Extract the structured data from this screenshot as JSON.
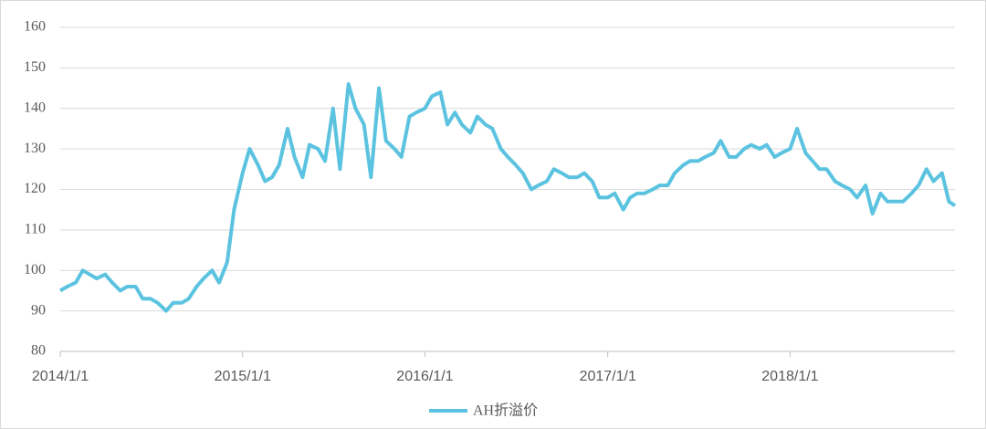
{
  "chart_data": {
    "type": "line",
    "x": [
      "2014/1/1",
      "2014/1/15",
      "2014/2/1",
      "2014/2/15",
      "2014/3/1",
      "2014/3/15",
      "2014/4/1",
      "2014/4/15",
      "2014/5/1",
      "2014/5/15",
      "2014/6/1",
      "2014/6/15",
      "2014/7/1",
      "2014/7/15",
      "2014/8/1",
      "2014/8/15",
      "2014/9/1",
      "2014/9/15",
      "2014/10/1",
      "2014/10/15",
      "2014/11/1",
      "2014/11/15",
      "2014/12/1",
      "2014/12/15",
      "2015/1/1",
      "2015/1/15",
      "2015/2/1",
      "2015/2/15",
      "2015/3/1",
      "2015/3/15",
      "2015/4/1",
      "2015/4/15",
      "2015/5/1",
      "2015/5/15",
      "2015/6/1",
      "2015/6/15",
      "2015/7/1",
      "2015/7/15",
      "2015/8/1",
      "2015/8/15",
      "2015/9/1",
      "2015/9/15",
      "2015/10/1",
      "2015/10/15",
      "2015/11/1",
      "2015/11/15",
      "2015/12/1",
      "2015/12/15",
      "2016/1/1",
      "2016/1/15",
      "2016/2/1",
      "2016/2/15",
      "2016/3/1",
      "2016/3/15",
      "2016/4/1",
      "2016/4/15",
      "2016/5/1",
      "2016/5/15",
      "2016/6/1",
      "2016/6/15",
      "2016/7/1",
      "2016/7/15",
      "2016/8/1",
      "2016/8/15",
      "2016/9/1",
      "2016/9/15",
      "2016/10/1",
      "2016/10/15",
      "2016/11/1",
      "2016/11/15",
      "2016/12/1",
      "2016/12/15",
      "2017/1/1",
      "2017/1/15",
      "2017/2/1",
      "2017/2/15",
      "2017/3/1",
      "2017/3/15",
      "2017/4/1",
      "2017/4/15",
      "2017/5/1",
      "2017/5/15",
      "2017/6/1",
      "2017/6/15",
      "2017/7/1",
      "2017/7/15",
      "2017/8/1",
      "2017/8/15",
      "2017/9/1",
      "2017/9/15",
      "2017/10/1",
      "2017/10/15",
      "2017/11/1",
      "2017/11/15",
      "2017/12/1",
      "2017/12/15",
      "2018/1/1",
      "2018/1/15",
      "2018/2/1",
      "2018/2/15",
      "2018/3/1",
      "2018/3/15",
      "2018/4/1",
      "2018/4/15",
      "2018/5/1",
      "2018/5/15",
      "2018/6/1",
      "2018/6/15",
      "2018/7/1",
      "2018/7/15",
      "2018/8/1",
      "2018/8/15",
      "2018/9/1",
      "2018/9/15",
      "2018/10/1",
      "2018/10/15",
      "2018/11/1",
      "2018/11/15",
      "2018/11/27"
    ],
    "series": [
      {
        "name": "AH折溢价",
        "color": "#5bc3e0",
        "values": [
          95,
          96,
          97,
          100,
          99,
          98,
          99,
          97,
          95,
          96,
          96,
          93,
          93,
          92,
          90,
          92,
          92,
          93,
          96,
          98,
          100,
          97,
          102,
          115,
          124,
          130,
          126,
          122,
          123,
          126,
          135,
          128,
          123,
          131,
          130,
          127,
          140,
          125,
          146,
          140,
          136,
          123,
          145,
          132,
          130,
          128,
          138,
          139,
          140,
          143,
          144,
          136,
          139,
          136,
          134,
          138,
          136,
          135,
          130,
          128,
          126,
          124,
          120,
          121,
          122,
          125,
          124,
          123,
          123,
          124,
          122,
          118,
          118,
          119,
          115,
          118,
          119,
          119,
          120,
          121,
          121,
          124,
          126,
          127,
          127,
          128,
          129,
          132,
          128,
          128,
          130,
          131,
          130,
          131,
          128,
          129,
          130,
          135,
          129,
          127,
          125,
          125,
          122,
          121,
          120,
          118,
          121,
          114,
          119,
          117,
          117,
          117,
          119,
          121,
          125,
          122,
          124,
          117,
          116
        ]
      }
    ],
    "xlim": [
      "2014/1/1",
      "2018/11/27"
    ],
    "xticks": [
      "2014/1/1",
      "2015/1/1",
      "2016/1/1",
      "2017/1/1",
      "2018/1/1"
    ],
    "ylim": [
      80,
      160
    ],
    "yticks": [
      80,
      90,
      100,
      110,
      120,
      130,
      140,
      150,
      160
    ],
    "grid": true
  }
}
